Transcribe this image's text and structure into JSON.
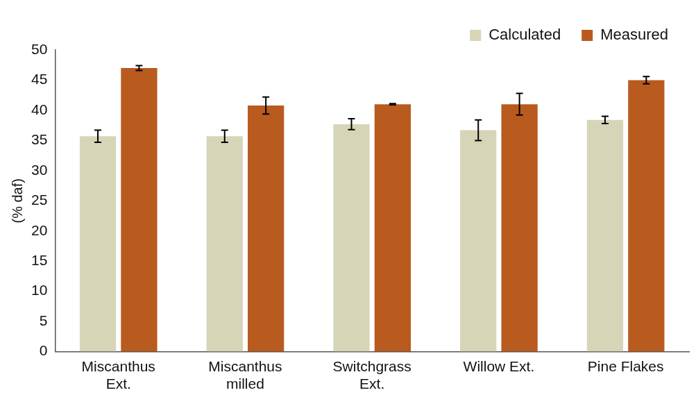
{
  "chart_data": {
    "type": "bar",
    "ylabel": "(% daf)",
    "categories": [
      "Miscanthus\nExt.",
      "Miscanthus\nmilled",
      "Switchgrass\nExt.",
      "Willow Ext.",
      "Pine Flakes"
    ],
    "series": [
      {
        "name": "Calculated",
        "color": "#d6d5b8",
        "values": [
          35.7,
          35.7,
          37.7,
          36.7,
          38.4
        ],
        "errors": [
          1.0,
          1.0,
          0.9,
          1.7,
          0.6
        ]
      },
      {
        "name": "Measured",
        "color": "#b95a1f",
        "values": [
          47.0,
          40.8,
          41.0,
          41.0,
          45.0
        ],
        "errors": [
          0.4,
          1.4,
          0.1,
          1.8,
          0.6
        ]
      }
    ],
    "ylim": [
      0,
      50
    ],
    "yticks": [
      0,
      5,
      10,
      15,
      20,
      25,
      30,
      35,
      40,
      45,
      50
    ],
    "grid": false,
    "legend": "top right"
  }
}
